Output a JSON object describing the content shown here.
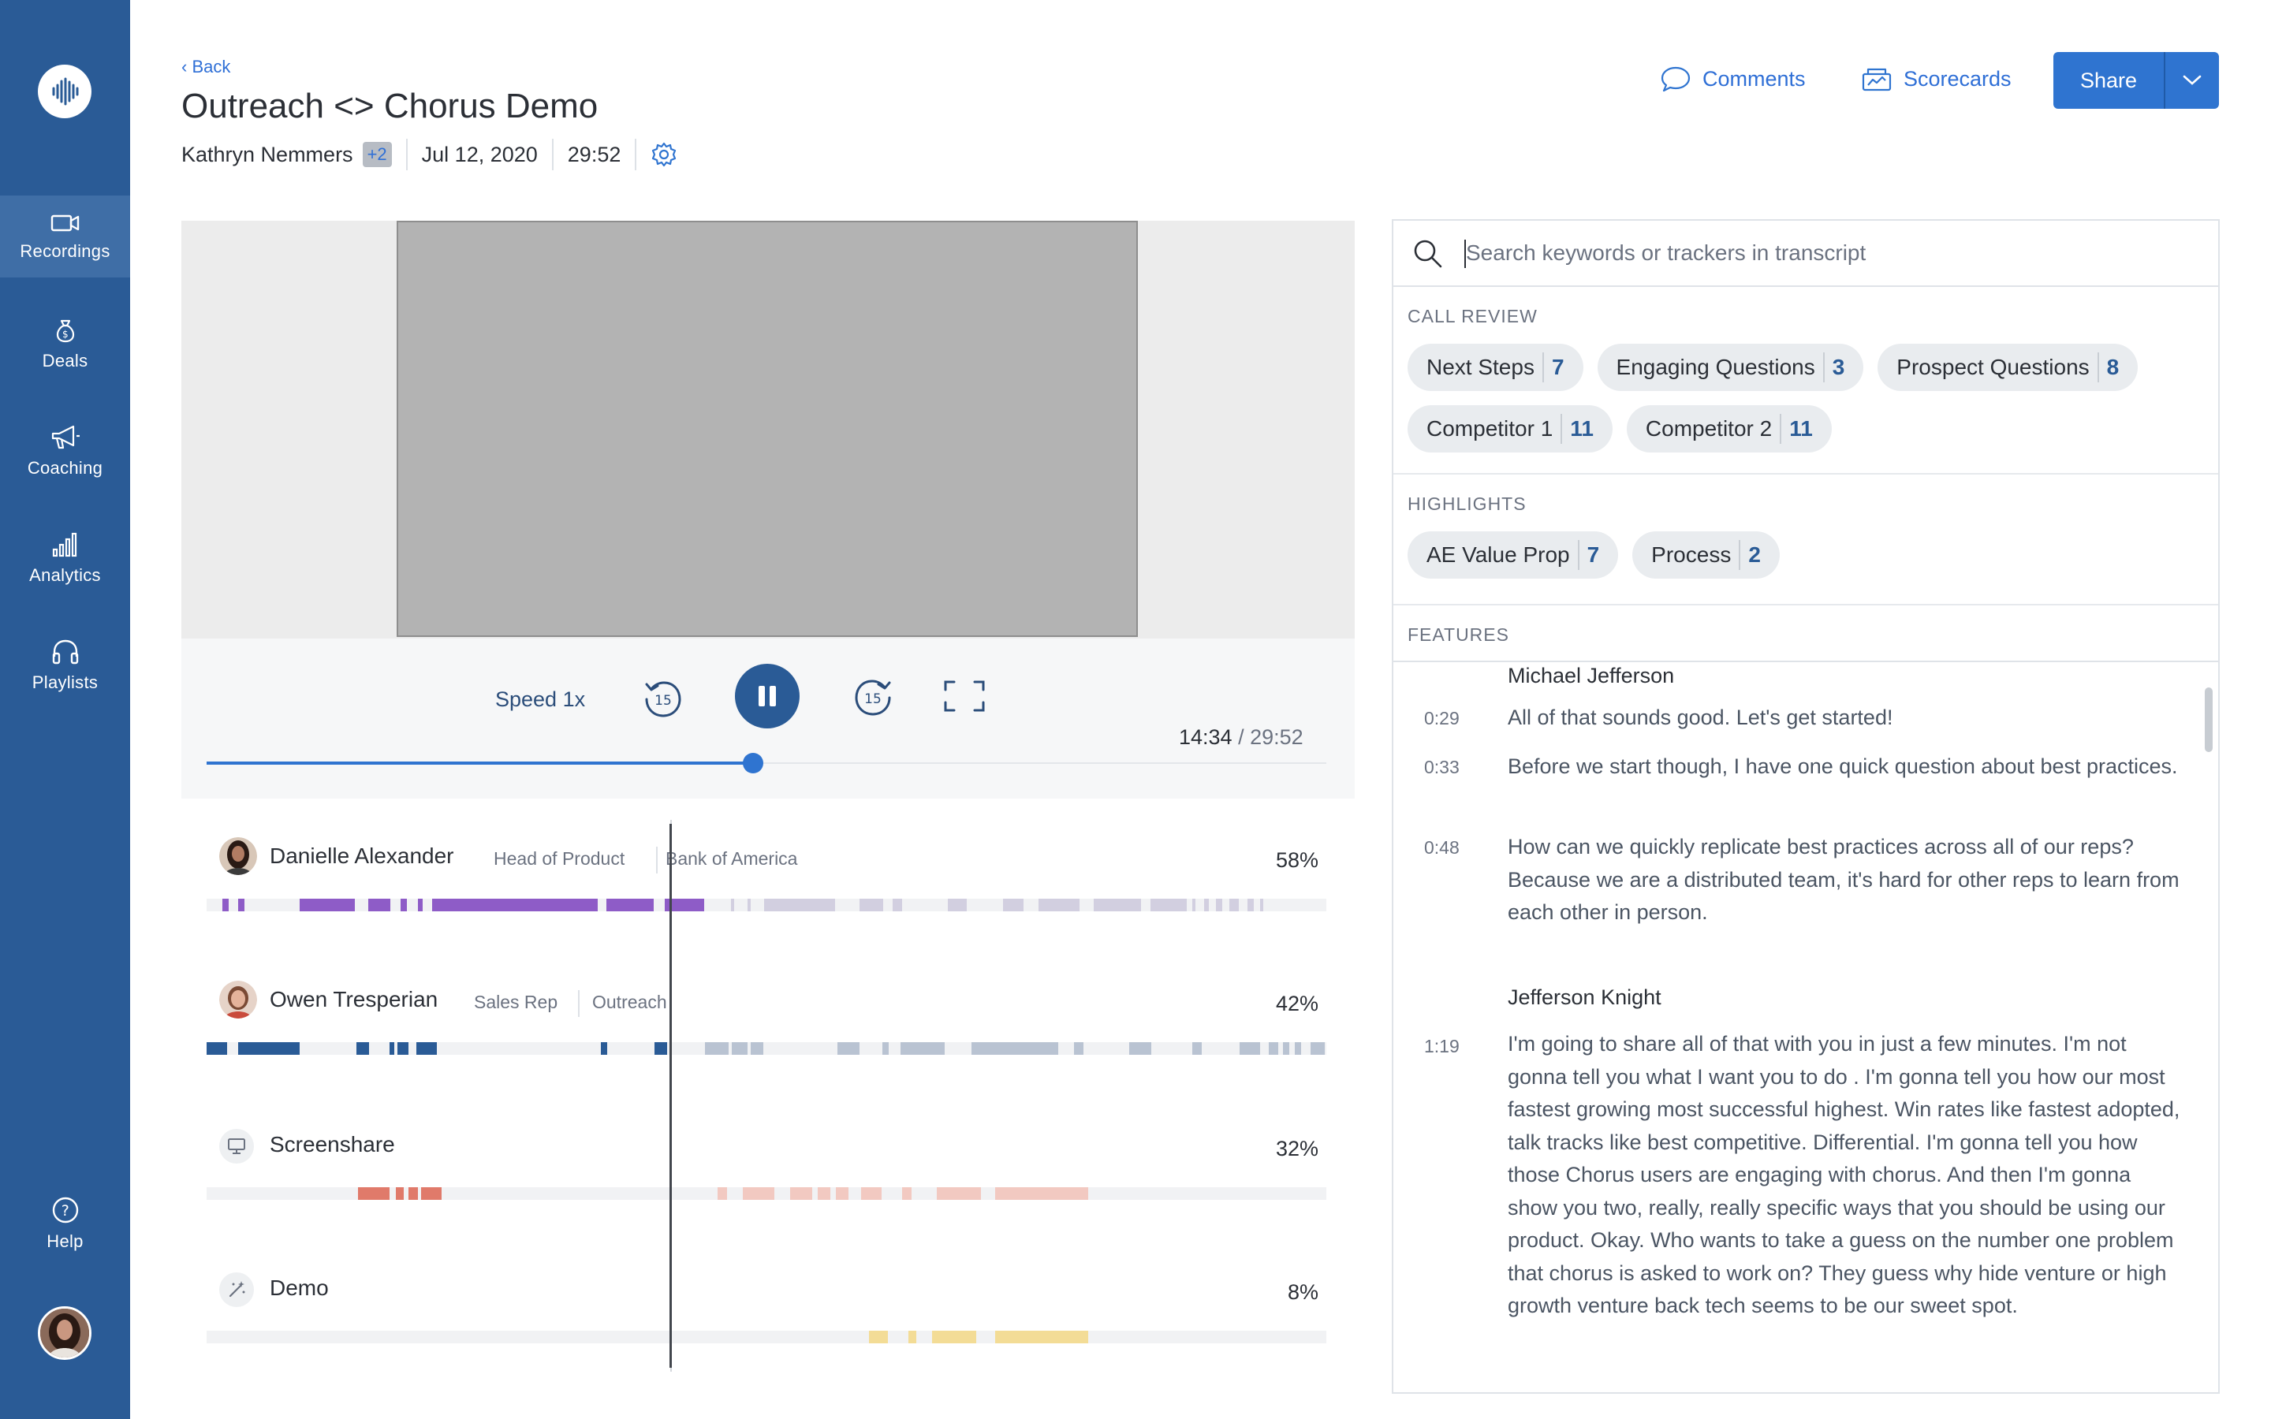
{
  "sidebar": {
    "items": [
      {
        "label": "Recordings",
        "icon": "video-camera-icon",
        "active": true
      },
      {
        "label": "Deals",
        "icon": "money-bag-icon"
      },
      {
        "label": "Coaching",
        "icon": "megaphone-icon"
      },
      {
        "label": "Analytics",
        "icon": "bar-chart-icon"
      },
      {
        "label": "Playlists",
        "icon": "headphones-icon"
      }
    ],
    "help_label": "Help"
  },
  "header": {
    "back_label": "‹ Back",
    "title": "Outreach <> Chorus Demo",
    "participant": "Kathryn Nemmers",
    "extra_participants": "+2",
    "date": "Jul 12, 2020",
    "duration": "29:52",
    "comments_label": "Comments",
    "scorecards_label": "Scorecards",
    "share_label": "Share"
  },
  "player": {
    "speed_label": "Speed 1x",
    "rewind_seconds": "15",
    "forward_seconds": "15",
    "current_time": "14:34",
    "total_time": "29:52",
    "progress_fraction": 0.4877
  },
  "speakers": [
    {
      "name": "Danielle Alexander",
      "role": "Head of Product",
      "company": "Bank of America",
      "percent": "58%"
    },
    {
      "name": "Owen Tresperian",
      "role": "Sales Rep",
      "company": "Outreach",
      "percent": "42%"
    },
    {
      "name": "Screenshare",
      "role": "",
      "company": "",
      "percent": "32%"
    },
    {
      "name": "Demo",
      "role": "",
      "company": "",
      "percent": "8%"
    }
  ],
  "colors": {
    "sidebar": "#2a5b96",
    "accent": "#2f74d0",
    "speaker1": "#8e5cc7",
    "speaker2": "#2a5b96",
    "screenshare": "#e07a6a",
    "demo": "#f3dc96"
  },
  "search": {
    "placeholder": "Search keywords or trackers in transcript",
    "sections": {
      "call_review": "CALL REVIEW",
      "highlights": "HIGHLIGHTS",
      "features": "FEATURES"
    },
    "call_review_chips": [
      {
        "label": "Next Steps",
        "count": "7"
      },
      {
        "label": "Engaging Questions",
        "count": "3"
      },
      {
        "label": "Prospect Questions",
        "count": "8"
      },
      {
        "label": "Competitor 1",
        "count": "11"
      },
      {
        "label": "Competitor 2",
        "count": "11"
      }
    ],
    "highlight_chips": [
      {
        "label": "AE Value Prop",
        "count": "7"
      },
      {
        "label": "Process",
        "count": "2"
      }
    ]
  },
  "transcript": {
    "blocks": [
      {
        "speaker": "Michael Jefferson"
      },
      {
        "time": "0:29",
        "text": "All of that sounds good. Let's get started!"
      },
      {
        "time": "0:33",
        "text": "Before we start though, I have one quick question about best practices."
      },
      {
        "time": "0:48",
        "text": "How can we quickly replicate best practices across all of our reps? Because we are a distributed team, it's hard for other reps to learn from each other in person."
      },
      {
        "speaker": "Jefferson Knight"
      },
      {
        "time": "1:19",
        "text": "I'm going to share all of that with you in just a few minutes. I'm not gonna tell you what I want you to do . I'm gonna tell you how our most fastest growing most successful highest. Win rates like fastest adopted, talk tracks like best competitive. Differential. I'm gonna tell you how those Chorus users are engaging with chorus. And then I'm gonna show you two, really, really specific ways that you should be using our product. Okay. Who wants to take a guess on the number one problem that chorus is asked to work on? They guess why hide venture or high growth venture back tech seems to be our sweet spot."
      }
    ]
  }
}
